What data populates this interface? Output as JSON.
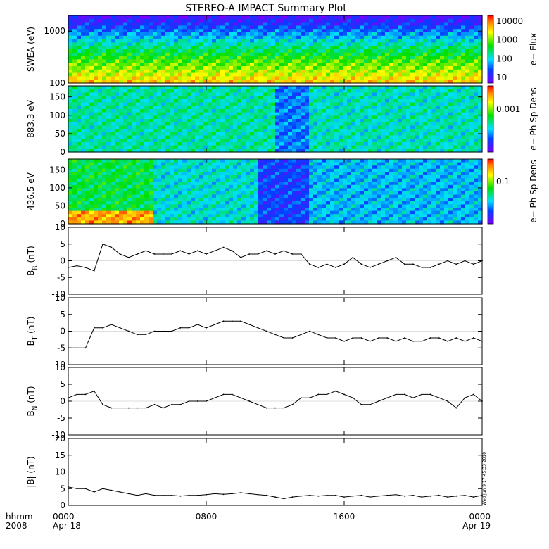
{
  "title": "STEREO-A IMPACT Summary Plot",
  "chart_data": [
    {
      "type": "heatmap",
      "ylabel": "SWEA (eV)",
      "yscale": "log",
      "ylim": [
        100,
        2000
      ],
      "yticks": [
        "100",
        "1000"
      ],
      "colorbar": {
        "label": "e− Flux",
        "scale": "log",
        "ticks": [
          "10",
          "100",
          "1000",
          "10000"
        ]
      },
      "rows_low_to_high": [
        0.8,
        0.7,
        0.62,
        0.52,
        0.42,
        0.3,
        0.18,
        0.08
      ]
    },
    {
      "type": "heatmap",
      "ylabel": "883.3 eV",
      "ylim": [
        0,
        180
      ],
      "yticks": [
        "0",
        "50",
        "100",
        "150"
      ],
      "colorbar": {
        "label": "e− Ph Sp Dens",
        "scale": "log",
        "ticks": [
          "0.001"
        ]
      },
      "segments": [
        {
          "x": [
            "00:00",
            "12:00"
          ],
          "level": 0.42
        },
        {
          "x": [
            "12:00",
            "14:00"
          ],
          "level": 0.25
        },
        {
          "x": [
            "14:00",
            "24:00"
          ],
          "level": 0.4
        }
      ]
    },
    {
      "type": "heatmap",
      "ylabel": "436.5 eV",
      "ylim": [
        0,
        180
      ],
      "yticks": [
        "0",
        "50",
        "100",
        "150"
      ],
      "colorbar": {
        "label": "e− Ph Sp Dens",
        "scale": "log",
        "ticks": [
          "0.1"
        ]
      },
      "segments": [
        {
          "x": [
            "00:00",
            "05:00"
          ],
          "level": 0.5,
          "low_band_level": 0.85
        },
        {
          "x": [
            "05:00",
            "11:00"
          ],
          "level": 0.38
        },
        {
          "x": [
            "11:00",
            "14:00"
          ],
          "level": 0.18
        },
        {
          "x": [
            "14:00",
            "24:00"
          ],
          "level": 0.32
        }
      ]
    },
    {
      "type": "line",
      "ylabel": "B",
      "ylabel_sub": "R",
      "ylabel_unit": "(nT)",
      "ylim": [
        -10,
        10
      ],
      "yticks": [
        "10",
        "5",
        "0",
        "-5",
        "-10"
      ],
      "x": [
        0,
        0.5,
        1,
        1.5,
        2,
        2.5,
        3,
        3.5,
        4,
        4.5,
        5,
        5.5,
        6,
        6.5,
        7,
        7.5,
        8,
        8.5,
        9,
        9.5,
        10,
        10.5,
        11,
        11.5,
        12,
        12.5,
        13,
        13.5,
        14,
        14.5,
        15,
        15.5,
        16,
        16.5,
        17,
        17.5,
        18,
        18.5,
        19,
        19.5,
        20,
        20.5,
        21,
        21.5,
        22,
        22.5,
        23,
        23.5,
        24
      ],
      "values": [
        -2,
        -1.5,
        -2,
        -3,
        5,
        4,
        2,
        1,
        2,
        3,
        2,
        2,
        2,
        3,
        2,
        3,
        2,
        3,
        4,
        3,
        1,
        2,
        2,
        3,
        2,
        3,
        2,
        2,
        -1,
        -2,
        -1,
        -2,
        -1,
        1,
        -1,
        -2,
        -1,
        0,
        1,
        -1,
        -1,
        -2,
        -2,
        -1,
        0,
        -1,
        0,
        -1,
        0
      ]
    },
    {
      "type": "line",
      "ylabel": "B",
      "ylabel_sub": "T",
      "ylabel_unit": "(nT)",
      "ylim": [
        -10,
        10
      ],
      "yticks": [
        "10",
        "5",
        "0",
        "-5",
        "-10"
      ],
      "x": [
        0,
        0.5,
        1,
        1.5,
        2,
        2.5,
        3,
        3.5,
        4,
        4.5,
        5,
        5.5,
        6,
        6.5,
        7,
        7.5,
        8,
        8.5,
        9,
        9.5,
        10,
        10.5,
        11,
        11.5,
        12,
        12.5,
        13,
        13.5,
        14,
        14.5,
        15,
        15.5,
        16,
        16.5,
        17,
        17.5,
        18,
        18.5,
        19,
        19.5,
        20,
        20.5,
        21,
        21.5,
        22,
        22.5,
        23,
        23.5,
        24
      ],
      "values": [
        -5,
        -5,
        -5,
        1,
        1,
        2,
        1,
        0,
        -1,
        -1,
        0,
        0,
        0,
        1,
        1,
        2,
        1,
        2,
        3,
        3,
        3,
        2,
        1,
        0,
        -1,
        -2,
        -2,
        -1,
        0,
        -1,
        -2,
        -2,
        -3,
        -2,
        -2,
        -3,
        -2,
        -2,
        -3,
        -2,
        -3,
        -3,
        -2,
        -2,
        -3,
        -2,
        -3,
        -2,
        -3
      ]
    },
    {
      "type": "line",
      "ylabel": "B",
      "ylabel_sub": "N",
      "ylabel_unit": "(nT)",
      "ylim": [
        -10,
        10
      ],
      "yticks": [
        "10",
        "5",
        "0",
        "-5",
        "-10"
      ],
      "x": [
        0,
        0.5,
        1,
        1.5,
        2,
        2.5,
        3,
        3.5,
        4,
        4.5,
        5,
        5.5,
        6,
        6.5,
        7,
        7.5,
        8,
        8.5,
        9,
        9.5,
        10,
        10.5,
        11,
        11.5,
        12,
        12.5,
        13,
        13.5,
        14,
        14.5,
        15,
        15.5,
        16,
        16.5,
        17,
        17.5,
        18,
        18.5,
        19,
        19.5,
        20,
        20.5,
        21,
        21.5,
        22,
        22.5,
        23,
        23.5,
        24
      ],
      "values": [
        1,
        2,
        2,
        3,
        -1,
        -2,
        -2,
        -2,
        -2,
        -2,
        -1,
        -2,
        -1,
        -1,
        0,
        0,
        0,
        1,
        2,
        2,
        1,
        0,
        -1,
        -2,
        -2,
        -2,
        -1,
        1,
        1,
        2,
        2,
        3,
        2,
        1,
        -1,
        -1,
        0,
        1,
        2,
        2,
        1,
        2,
        2,
        1,
        0,
        -2,
        1,
        2,
        0
      ]
    },
    {
      "type": "line",
      "ylabel": "|B| (nT)",
      "ylim": [
        0,
        20
      ],
      "yticks": [
        "20",
        "15",
        "10",
        "5",
        "0"
      ],
      "x": [
        0,
        0.5,
        1,
        1.5,
        2,
        2.5,
        3,
        3.5,
        4,
        4.5,
        5,
        5.5,
        6,
        6.5,
        7,
        7.5,
        8,
        8.5,
        9,
        9.5,
        10,
        10.5,
        11,
        11.5,
        12,
        12.5,
        13,
        13.5,
        14,
        14.5,
        15,
        15.5,
        16,
        16.5,
        17,
        17.5,
        18,
        18.5,
        19,
        19.5,
        20,
        20.5,
        21,
        21.5,
        22,
        22.5,
        23,
        23.5,
        24
      ],
      "values": [
        5.5,
        5,
        5,
        4,
        5,
        4.5,
        4,
        3.5,
        3,
        3.5,
        3,
        3,
        3,
        2.8,
        3,
        3,
        3.2,
        3.5,
        3.3,
        3.5,
        3.8,
        3.5,
        3.2,
        3,
        2.5,
        2,
        2.5,
        2.8,
        3,
        2.8,
        3,
        3,
        2.5,
        2.8,
        3,
        2.5,
        2.8,
        3,
        3.2,
        2.8,
        3,
        2.5,
        2.8,
        3,
        2.5,
        2.8,
        3,
        2.5,
        3
      ]
    }
  ],
  "xaxis": {
    "year_label": "hhmm",
    "year": "2008",
    "ticks": [
      {
        "time": "0000",
        "date": "Apr 18",
        "hour": 0
      },
      {
        "time": "0800",
        "date": "",
        "hour": 8
      },
      {
        "time": "1600",
        "date": "",
        "hour": 16
      },
      {
        "time": "0000",
        "date": "Apr 19",
        "hour": 24
      }
    ]
  },
  "stamp": "Wed Jun 9 17:45:33 2010"
}
